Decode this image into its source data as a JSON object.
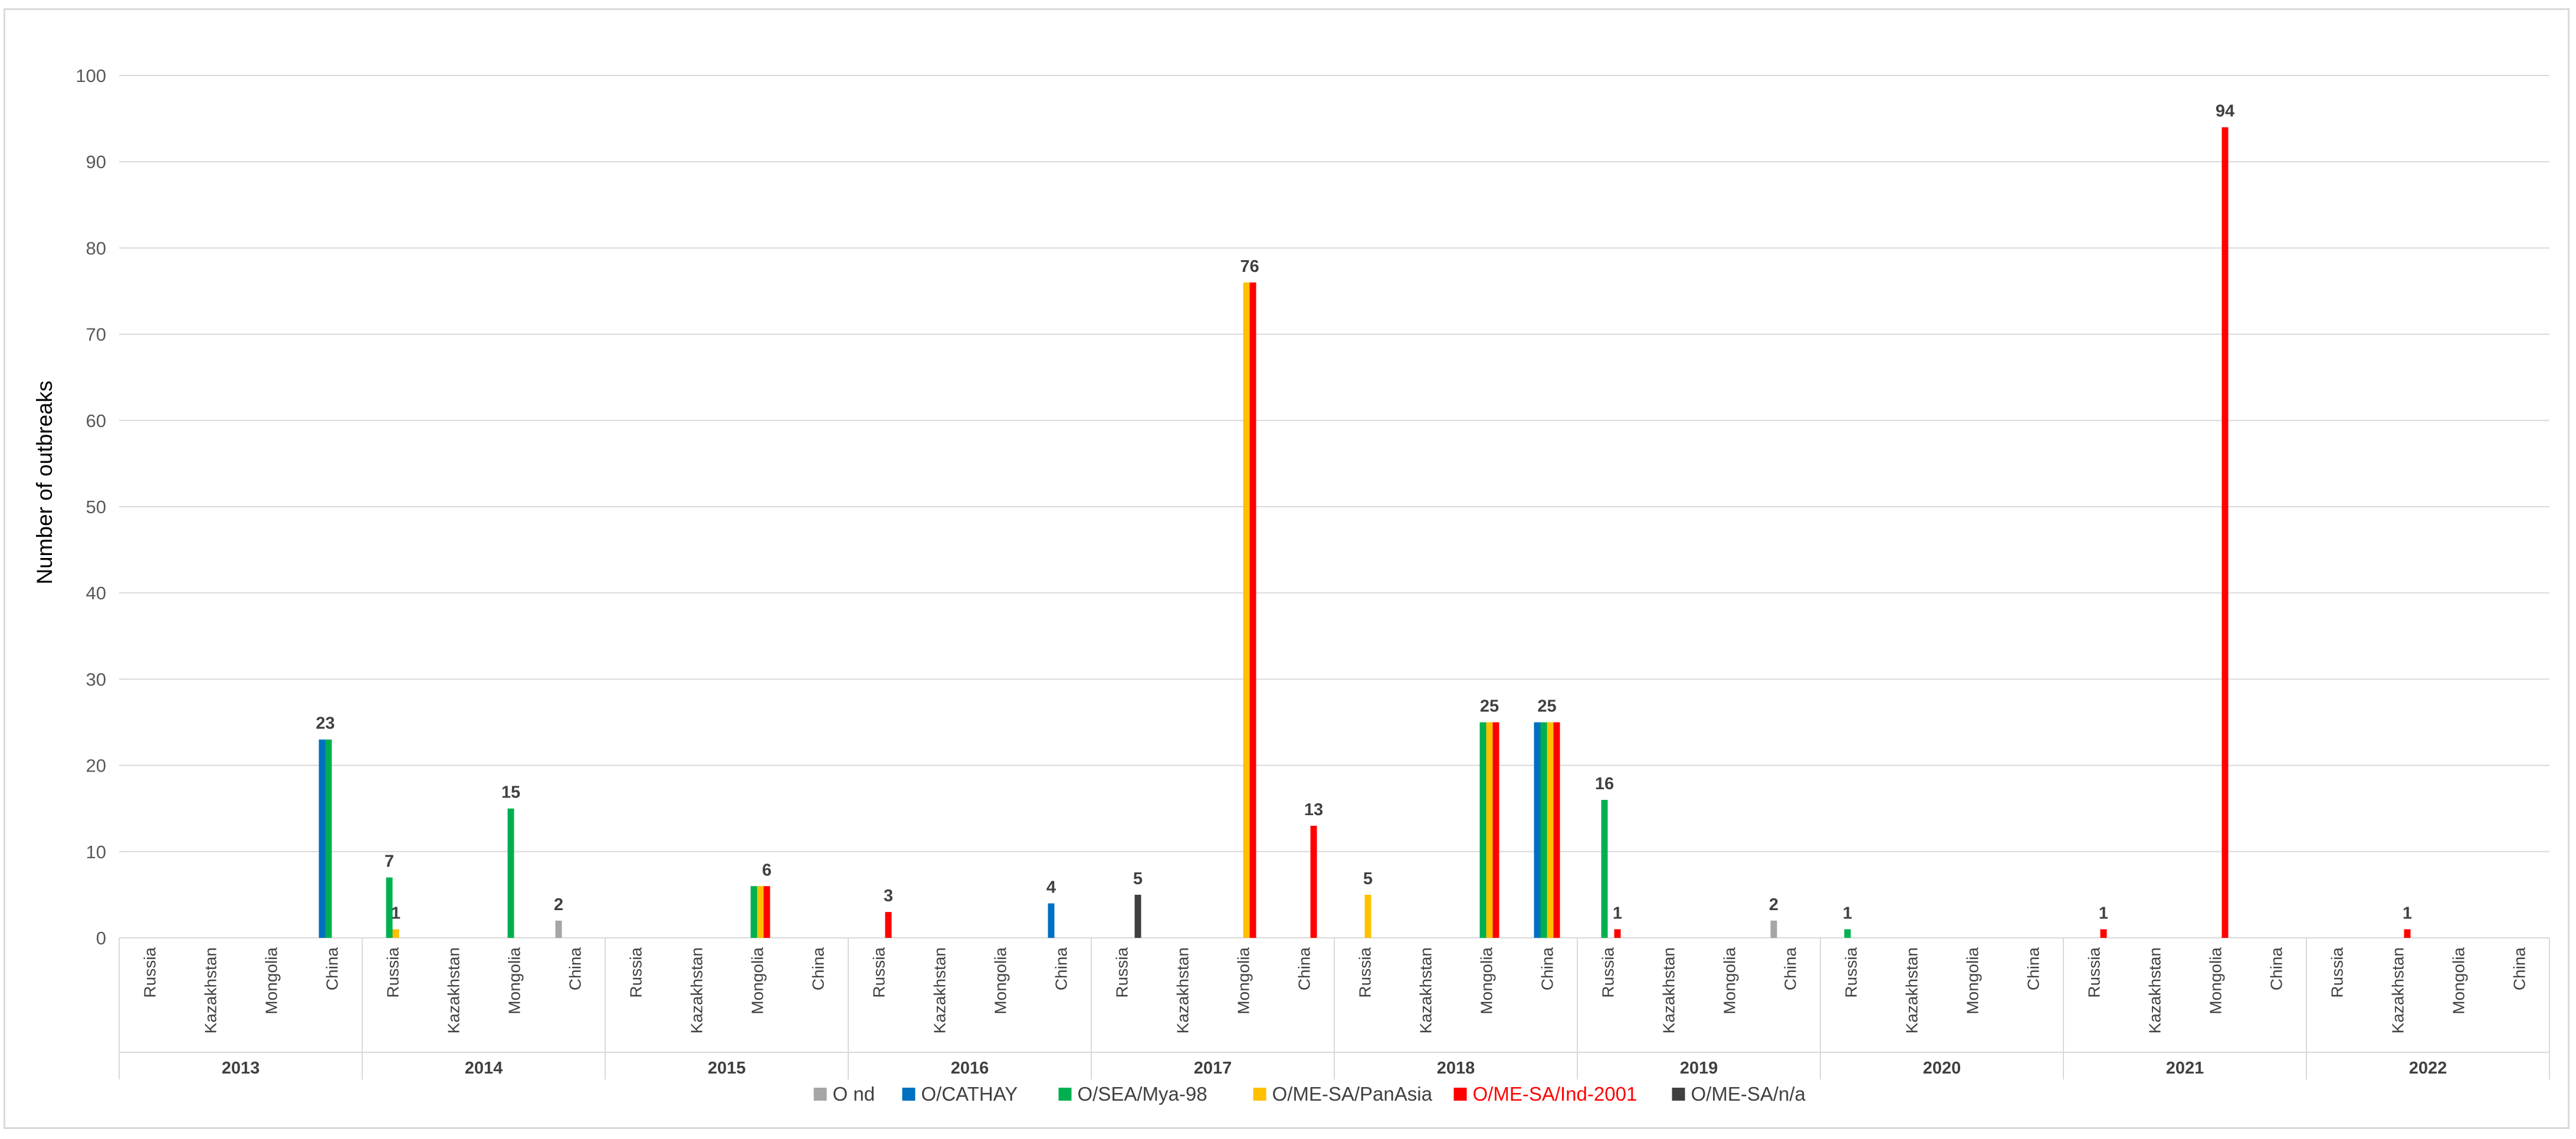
{
  "chart_data": {
    "type": "bar",
    "ylabel": "Number of outbreaks",
    "ylim": [
      0,
      100
    ],
    "yticks": [
      0,
      10,
      20,
      30,
      40,
      50,
      60,
      70,
      80,
      90,
      100
    ],
    "grid": true,
    "legend_position": "bottom",
    "years": [
      "2013",
      "2014",
      "2015",
      "2016",
      "2017",
      "2018",
      "2019",
      "2020",
      "2021",
      "2022"
    ],
    "countries": [
      "Russia",
      "Kazakhstan",
      "Mongolia",
      "China"
    ],
    "series": [
      {
        "name": "O nd",
        "color": "#a6a6a6"
      },
      {
        "name": "O/CATHAY",
        "color": "#0070c0"
      },
      {
        "name": "O/SEA/Mya-98",
        "color": "#00b050"
      },
      {
        "name": "O/ME-SA/PanAsia",
        "color": "#ffc000"
      },
      {
        "name": "O/ME-SA/Ind-2001",
        "color": "#ff0000",
        "label_color": "#ff0000"
      },
      {
        "name": "O/ME-SA/n/a",
        "color": "#404040"
      }
    ],
    "points": [
      {
        "year": "2013",
        "country": "China",
        "series": "O/CATHAY",
        "value": 23
      },
      {
        "year": "2013",
        "country": "China",
        "series": "O/SEA/Mya-98",
        "value": 23
      },
      {
        "year": "2014",
        "country": "Russia",
        "series": "O/SEA/Mya-98",
        "value": 7
      },
      {
        "year": "2014",
        "country": "Russia",
        "series": "O/ME-SA/PanAsia",
        "value": 1
      },
      {
        "year": "2014",
        "country": "Mongolia",
        "series": "O/SEA/Mya-98",
        "value": 15
      },
      {
        "year": "2014",
        "country": "China",
        "series": "O nd",
        "value": 2
      },
      {
        "year": "2015",
        "country": "Mongolia",
        "series": "O/SEA/Mya-98",
        "value": 6
      },
      {
        "year": "2015",
        "country": "Mongolia",
        "series": "O/ME-SA/PanAsia",
        "value": 6
      },
      {
        "year": "2015",
        "country": "Mongolia",
        "series": "O/ME-SA/Ind-2001",
        "value": 6
      },
      {
        "year": "2016",
        "country": "Russia",
        "series": "O/ME-SA/Ind-2001",
        "value": 3
      },
      {
        "year": "2016",
        "country": "China",
        "series": "O/CATHAY",
        "value": 4
      },
      {
        "year": "2017",
        "country": "Russia",
        "series": "O/ME-SA/n/a",
        "value": 5
      },
      {
        "year": "2017",
        "country": "Mongolia",
        "series": "O/ME-SA/PanAsia",
        "value": 76
      },
      {
        "year": "2017",
        "country": "Mongolia",
        "series": "O/ME-SA/Ind-2001",
        "value": 76
      },
      {
        "year": "2017",
        "country": "China",
        "series": "O/ME-SA/Ind-2001",
        "value": 13
      },
      {
        "year": "2018",
        "country": "Russia",
        "series": "O/ME-SA/PanAsia",
        "value": 5
      },
      {
        "year": "2018",
        "country": "Mongolia",
        "series": "O/SEA/Mya-98",
        "value": 25
      },
      {
        "year": "2018",
        "country": "Mongolia",
        "series": "O/ME-SA/PanAsia",
        "value": 25
      },
      {
        "year": "2018",
        "country": "Mongolia",
        "series": "O/ME-SA/Ind-2001",
        "value": 25
      },
      {
        "year": "2018",
        "country": "China",
        "series": "O/CATHAY",
        "value": 25
      },
      {
        "year": "2018",
        "country": "China",
        "series": "O/SEA/Mya-98",
        "value": 25
      },
      {
        "year": "2018",
        "country": "China",
        "series": "O/ME-SA/PanAsia",
        "value": 25
      },
      {
        "year": "2018",
        "country": "China",
        "series": "O/ME-SA/Ind-2001",
        "value": 25
      },
      {
        "year": "2019",
        "country": "Russia",
        "series": "O/SEA/Mya-98",
        "value": 16
      },
      {
        "year": "2019",
        "country": "Russia",
        "series": "O/ME-SA/Ind-2001",
        "value": 1
      },
      {
        "year": "2019",
        "country": "China",
        "series": "O nd",
        "value": 2
      },
      {
        "year": "2020",
        "country": "Russia",
        "series": "O/SEA/Mya-98",
        "value": 1
      },
      {
        "year": "2021",
        "country": "Russia",
        "series": "O/ME-SA/Ind-2001",
        "value": 1
      },
      {
        "year": "2021",
        "country": "Mongolia",
        "series": "O/ME-SA/Ind-2001",
        "value": 94
      },
      {
        "year": "2022",
        "country": "Kazakhstan",
        "series": "O/ME-SA/Ind-2001",
        "value": 1
      }
    ],
    "data_labels": [
      {
        "year": "2013",
        "country": "China",
        "text": "23",
        "anchor_series": [
          "O/CATHAY",
          "O/SEA/Mya-98"
        ]
      },
      {
        "year": "2014",
        "country": "Russia",
        "text": "7",
        "anchor_series": [
          "O/SEA/Mya-98"
        ]
      },
      {
        "year": "2014",
        "country": "Russia",
        "text": "1",
        "anchor_series": [
          "O/ME-SA/PanAsia"
        ]
      },
      {
        "year": "2014",
        "country": "Mongolia",
        "text": "15",
        "anchor_series": [
          "O/SEA/Mya-98"
        ]
      },
      {
        "year": "2014",
        "country": "China",
        "text": "2",
        "anchor_series": [
          "O nd"
        ]
      },
      {
        "year": "2015",
        "country": "Mongolia",
        "text": "6",
        "anchor_series": [
          "O/ME-SA/Ind-2001"
        ]
      },
      {
        "year": "2016",
        "country": "Russia",
        "text": "3",
        "anchor_series": [
          "O/ME-SA/Ind-2001"
        ]
      },
      {
        "year": "2016",
        "country": "China",
        "text": "4",
        "anchor_series": [
          "O/CATHAY"
        ]
      },
      {
        "year": "2017",
        "country": "Russia",
        "text": "5",
        "anchor_series": [
          "O/ME-SA/n/a"
        ]
      },
      {
        "year": "2017",
        "country": "Mongolia",
        "text": "76",
        "anchor_series": [
          "O/ME-SA/PanAsia",
          "O/ME-SA/Ind-2001"
        ]
      },
      {
        "year": "2017",
        "country": "China",
        "text": "13",
        "anchor_series": [
          "O/ME-SA/Ind-2001"
        ]
      },
      {
        "year": "2018",
        "country": "Russia",
        "text": "5",
        "anchor_series": [
          "O/ME-SA/PanAsia"
        ]
      },
      {
        "year": "2018",
        "country": "Mongolia",
        "text": "25",
        "anchor_series": [
          "O/SEA/Mya-98",
          "O/ME-SA/PanAsia",
          "O/ME-SA/Ind-2001"
        ]
      },
      {
        "year": "2018",
        "country": "China",
        "text": "25",
        "anchor_series": [
          "O/CATHAY",
          "O/SEA/Mya-98",
          "O/ME-SA/PanAsia",
          "O/ME-SA/Ind-2001"
        ]
      },
      {
        "year": "2019",
        "country": "Russia",
        "text": "16",
        "anchor_series": [
          "O/SEA/Mya-98"
        ]
      },
      {
        "year": "2019",
        "country": "Russia",
        "text": "1",
        "anchor_series": [
          "O/ME-SA/Ind-2001"
        ]
      },
      {
        "year": "2019",
        "country": "China",
        "text": "2",
        "anchor_series": [
          "O nd"
        ]
      },
      {
        "year": "2020",
        "country": "Russia",
        "text": "1",
        "anchor_series": [
          "O/SEA/Mya-98"
        ]
      },
      {
        "year": "2021",
        "country": "Russia",
        "text": "1",
        "anchor_series": [
          "O/ME-SA/Ind-2001"
        ]
      },
      {
        "year": "2021",
        "country": "Mongolia",
        "text": "94",
        "anchor_series": [
          "O/ME-SA/Ind-2001"
        ]
      },
      {
        "year": "2022",
        "country": "Kazakhstan",
        "text": "1",
        "anchor_series": [
          "O/ME-SA/Ind-2001"
        ]
      }
    ]
  }
}
